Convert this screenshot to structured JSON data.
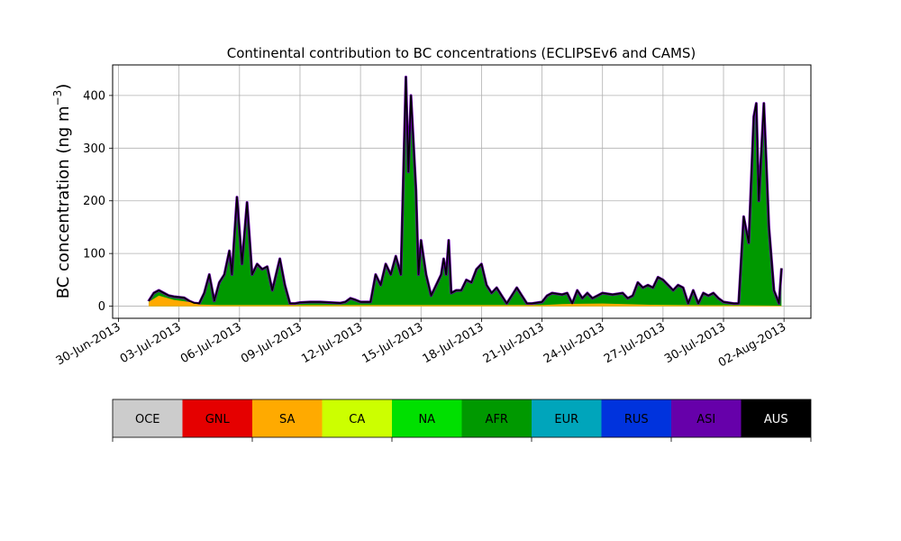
{
  "chart_data": {
    "type": "area",
    "title": "Continental contribution to BC concentrations (ECLIPSEv6 and CAMS)",
    "ylabel": "BC concentration (ng m",
    "ylabel_sup": "−3",
    "ylabel_close": ")",
    "xlabel": "",
    "stacked": true,
    "grid": true,
    "xlim": [
      "2013-06-29T17:00",
      "2013-08-03T08:00"
    ],
    "ylim": [
      -23,
      458
    ],
    "x_ticks": [
      "30-Jun-2013",
      "03-Jul-2013",
      "06-Jul-2013",
      "09-Jul-2013",
      "12-Jul-2013",
      "15-Jul-2013",
      "18-Jul-2013",
      "21-Jul-2013",
      "24-Jul-2013",
      "27-Jul-2013",
      "30-Jul-2013",
      "02-Aug-2013"
    ],
    "y_ticks": [
      0,
      100,
      200,
      300,
      400
    ],
    "total": {
      "color": "#000000",
      "points": [
        [
          "2013-07-01T12:00",
          10
        ],
        [
          "2013-07-01T18:00",
          25
        ],
        [
          "2013-07-02T00:00",
          30
        ],
        [
          "2013-07-02T06:00",
          25
        ],
        [
          "2013-07-02T12:00",
          20
        ],
        [
          "2013-07-02T18:00",
          18
        ],
        [
          "2013-07-03T00:00",
          17
        ],
        [
          "2013-07-03T06:00",
          16
        ],
        [
          "2013-07-03T12:00",
          10
        ],
        [
          "2013-07-03T18:00",
          6
        ],
        [
          "2013-07-04T00:00",
          5
        ],
        [
          "2013-07-04T06:00",
          25
        ],
        [
          "2013-07-04T12:00",
          60
        ],
        [
          "2013-07-04T18:00",
          10
        ],
        [
          "2013-07-05T00:00",
          45
        ],
        [
          "2013-07-05T06:00",
          60
        ],
        [
          "2013-07-05T12:00",
          105
        ],
        [
          "2013-07-05T15:00",
          60
        ],
        [
          "2013-07-05T21:00",
          207
        ],
        [
          "2013-07-06T03:00",
          80
        ],
        [
          "2013-07-06T09:00",
          197
        ],
        [
          "2013-07-06T15:00",
          60
        ],
        [
          "2013-07-06T21:00",
          80
        ],
        [
          "2013-07-07T03:00",
          70
        ],
        [
          "2013-07-07T09:00",
          75
        ],
        [
          "2013-07-07T15:00",
          30
        ],
        [
          "2013-07-08T00:00",
          90
        ],
        [
          "2013-07-08T06:00",
          40
        ],
        [
          "2013-07-08T12:00",
          5
        ],
        [
          "2013-07-08T18:00",
          5
        ],
        [
          "2013-07-09T00:00",
          7
        ],
        [
          "2013-07-09T12:00",
          8
        ],
        [
          "2013-07-10T00:00",
          8
        ],
        [
          "2013-07-10T12:00",
          7
        ],
        [
          "2013-07-11T00:00",
          6
        ],
        [
          "2013-07-11T06:00",
          8
        ],
        [
          "2013-07-11T12:00",
          15
        ],
        [
          "2013-07-11T18:00",
          12
        ],
        [
          "2013-07-12T00:00",
          8
        ],
        [
          "2013-07-12T12:00",
          8
        ],
        [
          "2013-07-12T18:00",
          60
        ],
        [
          "2013-07-13T00:00",
          40
        ],
        [
          "2013-07-13T06:00",
          80
        ],
        [
          "2013-07-13T12:00",
          60
        ],
        [
          "2013-07-13T18:00",
          95
        ],
        [
          "2013-07-14T00:00",
          60
        ],
        [
          "2013-07-14T06:00",
          435
        ],
        [
          "2013-07-14T09:00",
          255
        ],
        [
          "2013-07-14T12:00",
          400
        ],
        [
          "2013-07-14T18:00",
          220
        ],
        [
          "2013-07-14T21:00",
          60
        ],
        [
          "2013-07-15T00:00",
          125
        ],
        [
          "2013-07-15T06:00",
          60
        ],
        [
          "2013-07-15T12:00",
          20
        ],
        [
          "2013-07-15T18:00",
          40
        ],
        [
          "2013-07-16T00:00",
          60
        ],
        [
          "2013-07-16T03:00",
          90
        ],
        [
          "2013-07-16T06:00",
          60
        ],
        [
          "2013-07-16T09:00",
          125
        ],
        [
          "2013-07-16T12:00",
          25
        ],
        [
          "2013-07-16T18:00",
          30
        ],
        [
          "2013-07-17T00:00",
          30
        ],
        [
          "2013-07-17T06:00",
          50
        ],
        [
          "2013-07-17T12:00",
          45
        ],
        [
          "2013-07-17T18:00",
          70
        ],
        [
          "2013-07-18T00:00",
          80
        ],
        [
          "2013-07-18T06:00",
          40
        ],
        [
          "2013-07-18T12:00",
          25
        ],
        [
          "2013-07-18T18:00",
          35
        ],
        [
          "2013-07-19T00:00",
          20
        ],
        [
          "2013-07-19T06:00",
          5
        ],
        [
          "2013-07-19T12:00",
          20
        ],
        [
          "2013-07-19T18:00",
          35
        ],
        [
          "2013-07-20T00:00",
          20
        ],
        [
          "2013-07-20T06:00",
          5
        ],
        [
          "2013-07-20T12:00",
          5
        ],
        [
          "2013-07-21T00:00",
          8
        ],
        [
          "2013-07-21T06:00",
          20
        ],
        [
          "2013-07-21T12:00",
          25
        ],
        [
          "2013-07-22T00:00",
          22
        ],
        [
          "2013-07-22T06:00",
          25
        ],
        [
          "2013-07-22T12:00",
          5
        ],
        [
          "2013-07-22T18:00",
          30
        ],
        [
          "2013-07-23T00:00",
          15
        ],
        [
          "2013-07-23T06:00",
          25
        ],
        [
          "2013-07-23T12:00",
          15
        ],
        [
          "2013-07-23T18:00",
          20
        ],
        [
          "2013-07-24T00:00",
          25
        ],
        [
          "2013-07-24T12:00",
          22
        ],
        [
          "2013-07-25T00:00",
          25
        ],
        [
          "2013-07-25T06:00",
          15
        ],
        [
          "2013-07-25T12:00",
          20
        ],
        [
          "2013-07-25T18:00",
          45
        ],
        [
          "2013-07-26T00:00",
          35
        ],
        [
          "2013-07-26T06:00",
          40
        ],
        [
          "2013-07-26T12:00",
          35
        ],
        [
          "2013-07-26T18:00",
          55
        ],
        [
          "2013-07-27T00:00",
          50
        ],
        [
          "2013-07-27T06:00",
          40
        ],
        [
          "2013-07-27T12:00",
          30
        ],
        [
          "2013-07-27T18:00",
          40
        ],
        [
          "2013-07-28T00:00",
          35
        ],
        [
          "2013-07-28T06:00",
          5
        ],
        [
          "2013-07-28T12:00",
          30
        ],
        [
          "2013-07-28T18:00",
          5
        ],
        [
          "2013-07-29T00:00",
          25
        ],
        [
          "2013-07-29T06:00",
          20
        ],
        [
          "2013-07-29T12:00",
          25
        ],
        [
          "2013-07-29T18:00",
          15
        ],
        [
          "2013-07-30T00:00",
          8
        ],
        [
          "2013-07-30T12:00",
          5
        ],
        [
          "2013-07-30T18:00",
          5
        ],
        [
          "2013-07-31T00:00",
          170
        ],
        [
          "2013-07-31T06:00",
          120
        ],
        [
          "2013-07-31T12:00",
          360
        ],
        [
          "2013-07-31T15:00",
          385
        ],
        [
          "2013-07-31T18:00",
          200
        ],
        [
          "2013-08-01T00:00",
          385
        ],
        [
          "2013-08-01T06:00",
          150
        ],
        [
          "2013-08-01T12:00",
          30
        ],
        [
          "2013-08-01T18:00",
          5
        ],
        [
          "2013-08-01T21:00",
          72
        ]
      ]
    },
    "series": [
      {
        "name": "OCE",
        "color": "#cccccc"
      },
      {
        "name": "GNL",
        "color": "#e50000"
      },
      {
        "name": "SA",
        "color": "#ffaa00"
      },
      {
        "name": "CA",
        "color": "#ccff00"
      },
      {
        "name": "NA",
        "color": "#00e000"
      },
      {
        "name": "AFR",
        "color": "#009900"
      },
      {
        "name": "EUR",
        "color": "#00a5bb"
      },
      {
        "name": "RUS",
        "color": "#0033dd"
      },
      {
        "name": "ASI",
        "color": "#6600aa"
      },
      {
        "name": "AUS",
        "color": "#000000"
      }
    ],
    "series_components": {
      "SA": [
        [
          "2013-07-01T12:00",
          8
        ],
        [
          "2013-07-02T00:00",
          20
        ],
        [
          "2013-07-02T18:00",
          12
        ],
        [
          "2013-07-03T12:00",
          8
        ],
        [
          "2013-07-04T00:00",
          3
        ],
        [
          "2013-07-05T00:00",
          2
        ],
        [
          "2013-07-21T00:00",
          2
        ],
        [
          "2013-07-22T00:00",
          4
        ],
        [
          "2013-07-24T00:00",
          5
        ],
        [
          "2013-07-27T00:00",
          2
        ],
        [
          "2013-08-01T21:00",
          1
        ]
      ],
      "CA": [
        [
          "2013-07-01T12:00",
          2
        ],
        [
          "2013-07-02T00:00",
          5
        ],
        [
          "2013-07-03T00:00",
          3
        ],
        [
          "2013-07-04T00:00",
          2
        ],
        [
          "2013-07-21T00:00",
          2
        ],
        [
          "2013-07-24T00:00",
          3
        ],
        [
          "2013-08-01T21:00",
          1
        ]
      ],
      "ASI": [
        [
          "2013-07-01T12:00",
          0
        ],
        [
          "2013-07-08T00:00",
          5
        ],
        [
          "2013-07-17T12:00",
          6
        ],
        [
          "2013-07-22T00:00",
          5
        ],
        [
          "2013-07-26T00:00",
          8
        ],
        [
          "2013-07-31T12:00",
          12
        ],
        [
          "2013-08-01T21:00",
          2
        ]
      ]
    }
  }
}
